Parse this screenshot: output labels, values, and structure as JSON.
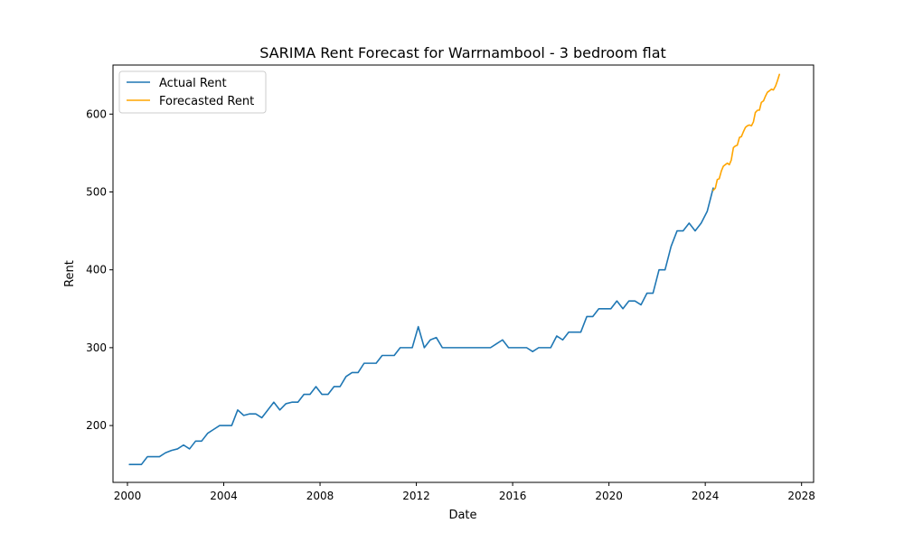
{
  "chart_data": {
    "type": "line",
    "title": "SARIMA Rent Forecast for Warrnambool - 3 bedroom flat",
    "xlabel": "Date",
    "ylabel": "Rent",
    "xlim": [
      1999.4,
      2028.5
    ],
    "ylim": [
      127,
      663
    ],
    "x_ticks": [
      2000,
      2004,
      2008,
      2012,
      2016,
      2020,
      2024,
      2028
    ],
    "x_tick_labels": [
      "2000",
      "2004",
      "2008",
      "2012",
      "2016",
      "2020",
      "2024",
      "2028"
    ],
    "y_ticks": [
      200,
      300,
      400,
      500,
      600
    ],
    "y_tick_labels": [
      "200",
      "300",
      "400",
      "500",
      "600"
    ],
    "grid": false,
    "legend_position": "upper-left",
    "series": [
      {
        "name": "Actual Rent",
        "color": "#1f77b4",
        "points": [
          [
            2000.08,
            150
          ],
          [
            2000.33,
            150
          ],
          [
            2000.58,
            150
          ],
          [
            2000.83,
            160
          ],
          [
            2001.08,
            160
          ],
          [
            2001.33,
            160
          ],
          [
            2001.58,
            165
          ],
          [
            2001.83,
            168
          ],
          [
            2002.08,
            170
          ],
          [
            2002.33,
            175
          ],
          [
            2002.58,
            170
          ],
          [
            2002.83,
            180
          ],
          [
            2003.08,
            180
          ],
          [
            2003.33,
            190
          ],
          [
            2003.58,
            195
          ],
          [
            2003.83,
            200
          ],
          [
            2004.08,
            200
          ],
          [
            2004.33,
            200
          ],
          [
            2004.58,
            220
          ],
          [
            2004.83,
            213
          ],
          [
            2005.08,
            215
          ],
          [
            2005.33,
            215
          ],
          [
            2005.58,
            210
          ],
          [
            2005.83,
            220
          ],
          [
            2006.08,
            230
          ],
          [
            2006.33,
            220
          ],
          [
            2006.58,
            228
          ],
          [
            2006.83,
            230
          ],
          [
            2007.08,
            230
          ],
          [
            2007.33,
            240
          ],
          [
            2007.58,
            240
          ],
          [
            2007.83,
            250
          ],
          [
            2008.08,
            240
          ],
          [
            2008.33,
            240
          ],
          [
            2008.58,
            250
          ],
          [
            2008.83,
            250
          ],
          [
            2009.08,
            263
          ],
          [
            2009.33,
            268
          ],
          [
            2009.58,
            268
          ],
          [
            2009.83,
            280
          ],
          [
            2010.08,
            280
          ],
          [
            2010.33,
            280
          ],
          [
            2010.58,
            290
          ],
          [
            2010.83,
            290
          ],
          [
            2011.08,
            290
          ],
          [
            2011.33,
            300
          ],
          [
            2011.58,
            300
          ],
          [
            2011.83,
            300
          ],
          [
            2012.08,
            327
          ],
          [
            2012.33,
            300
          ],
          [
            2012.58,
            310
          ],
          [
            2012.83,
            313
          ],
          [
            2013.08,
            300
          ],
          [
            2013.33,
            300
          ],
          [
            2013.58,
            300
          ],
          [
            2013.83,
            300
          ],
          [
            2014.08,
            300
          ],
          [
            2014.33,
            300
          ],
          [
            2014.58,
            300
          ],
          [
            2014.83,
            300
          ],
          [
            2015.08,
            300
          ],
          [
            2015.33,
            305
          ],
          [
            2015.58,
            310
          ],
          [
            2015.83,
            300
          ],
          [
            2016.08,
            300
          ],
          [
            2016.33,
            300
          ],
          [
            2016.58,
            300
          ],
          [
            2016.83,
            295
          ],
          [
            2017.08,
            300
          ],
          [
            2017.33,
            300
          ],
          [
            2017.58,
            300
          ],
          [
            2017.83,
            315
          ],
          [
            2018.08,
            310
          ],
          [
            2018.33,
            320
          ],
          [
            2018.58,
            320
          ],
          [
            2018.83,
            320
          ],
          [
            2019.08,
            340
          ],
          [
            2019.33,
            340
          ],
          [
            2019.58,
            350
          ],
          [
            2019.83,
            350
          ],
          [
            2020.08,
            350
          ],
          [
            2020.33,
            360
          ],
          [
            2020.58,
            350
          ],
          [
            2020.83,
            360
          ],
          [
            2021.08,
            360
          ],
          [
            2021.33,
            355
          ],
          [
            2021.58,
            370
          ],
          [
            2021.83,
            370
          ],
          [
            2022.08,
            400
          ],
          [
            2022.33,
            400
          ],
          [
            2022.58,
            430
          ],
          [
            2022.83,
            450
          ],
          [
            2023.08,
            450
          ],
          [
            2023.33,
            460
          ],
          [
            2023.58,
            450
          ],
          [
            2023.83,
            460
          ],
          [
            2024.08,
            475
          ],
          [
            2024.33,
            505
          ]
        ]
      },
      {
        "name": "Forecasted Rent",
        "color": "#ffa500",
        "points": [
          [
            2024.33,
            502
          ],
          [
            2024.42,
            505
          ],
          [
            2024.5,
            516
          ],
          [
            2024.58,
            517
          ],
          [
            2024.67,
            527
          ],
          [
            2024.75,
            533
          ],
          [
            2024.83,
            535
          ],
          [
            2024.92,
            537
          ],
          [
            2025.0,
            535
          ],
          [
            2025.08,
            541
          ],
          [
            2025.17,
            557
          ],
          [
            2025.25,
            559
          ],
          [
            2025.33,
            560
          ],
          [
            2025.42,
            570
          ],
          [
            2025.5,
            571
          ],
          [
            2025.58,
            577
          ],
          [
            2025.67,
            583
          ],
          [
            2025.75,
            585
          ],
          [
            2025.83,
            586
          ],
          [
            2025.92,
            585
          ],
          [
            2026.0,
            590
          ],
          [
            2026.08,
            602
          ],
          [
            2026.17,
            605
          ],
          [
            2026.25,
            605
          ],
          [
            2026.33,
            615
          ],
          [
            2026.42,
            617
          ],
          [
            2026.5,
            623
          ],
          [
            2026.58,
            628
          ],
          [
            2026.67,
            630
          ],
          [
            2026.75,
            632
          ],
          [
            2026.83,
            631
          ],
          [
            2026.92,
            636
          ],
          [
            2027.0,
            643
          ],
          [
            2027.08,
            651
          ]
        ]
      }
    ]
  }
}
